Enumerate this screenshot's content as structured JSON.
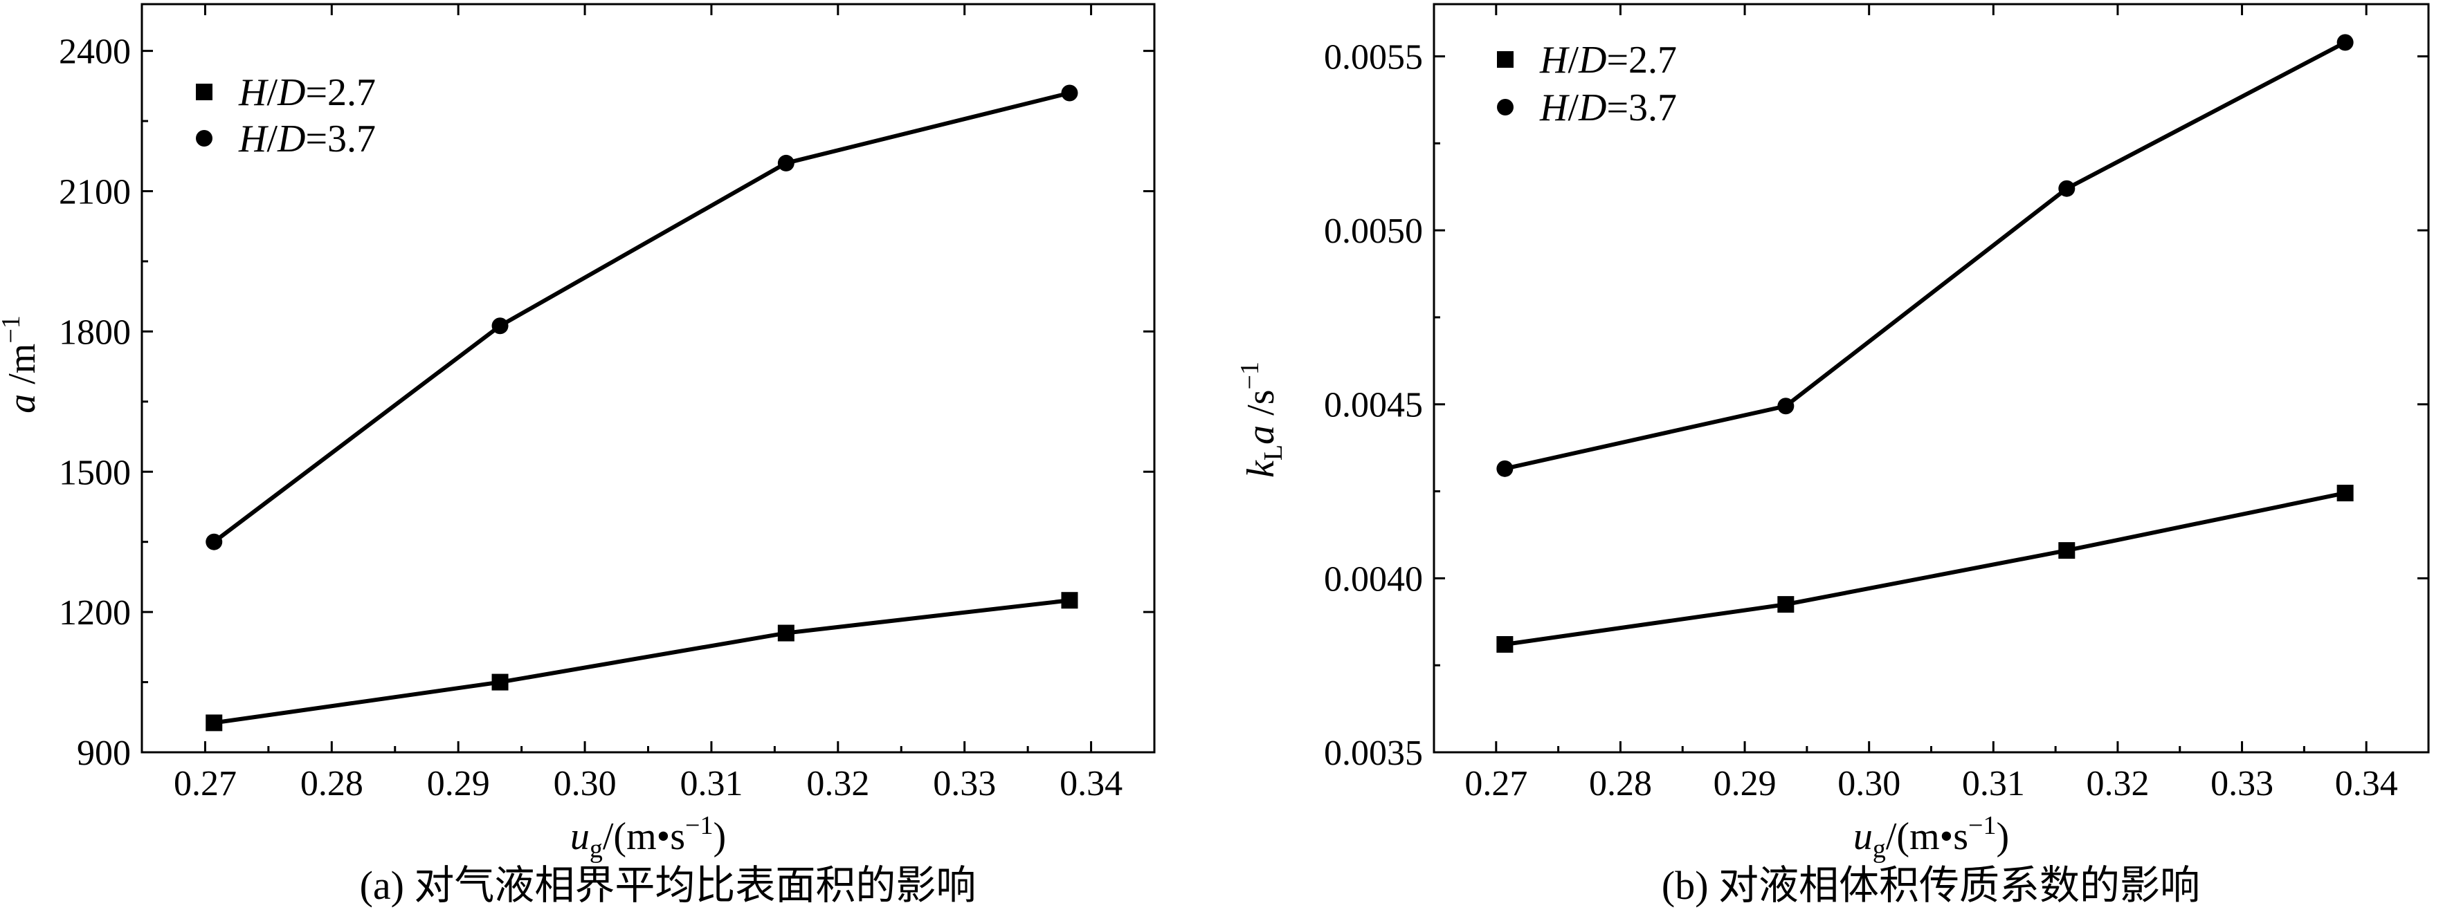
{
  "chart_data": [
    {
      "type": "line",
      "caption": "(a) 对气液相界平均比表面积的影响",
      "xlabel": {
        "var": "u",
        "sub": "g",
        "unit": "/(m•s",
        "exp": "−1",
        "close": ")"
      },
      "ylabel": {
        "var": "a",
        "unit": " /m",
        "exp": "−1"
      },
      "xlim": [
        0.265,
        0.345
      ],
      "ylim": [
        900,
        2500
      ],
      "xticks": [
        0.27,
        0.28,
        0.29,
        0.3,
        0.31,
        0.32,
        0.33,
        0.34
      ],
      "xtick_labels": [
        "0.27",
        "0.28",
        "0.29",
        "0.30",
        "0.31",
        "0.32",
        "0.33",
        "0.34"
      ],
      "yticks": [
        900,
        1200,
        1500,
        1800,
        2100,
        2400
      ],
      "ytick_labels": [
        "900",
        "1200",
        "1500",
        "1800",
        "2100",
        "2400"
      ],
      "legend": {
        "position": "top-left"
      },
      "series": [
        {
          "name": "H/D=2.7",
          "label_var": "H",
          "label_sep": "/",
          "label_var2": "D",
          "label_rest": "=2.7",
          "marker": "square",
          "x": [
            0.2707,
            0.2933,
            0.3159,
            0.3383
          ],
          "y": [
            963,
            1050,
            1155,
            1225
          ]
        },
        {
          "name": "H/D=3.7",
          "label_var": "H",
          "label_sep": "/",
          "label_var2": "D",
          "label_rest": "=3.7",
          "marker": "circle",
          "x": [
            0.2707,
            0.2933,
            0.3159,
            0.3383
          ],
          "y": [
            1350,
            1812,
            2160,
            2310
          ]
        }
      ]
    },
    {
      "type": "line",
      "caption": "(b) 对液相体积传质系数的影响",
      "xlabel": {
        "var": "u",
        "sub": "g",
        "unit": "/(m•s",
        "exp": "−1",
        "close": ")"
      },
      "ylabel": {
        "var": "k",
        "sub": "L",
        "var2": "a",
        "unit": " /s",
        "exp": "−1"
      },
      "xlim": [
        0.265,
        0.345
      ],
      "ylim": [
        0.0035,
        0.00565
      ],
      "xticks": [
        0.27,
        0.28,
        0.29,
        0.3,
        0.31,
        0.32,
        0.33,
        0.34
      ],
      "xtick_labels": [
        "0.27",
        "0.28",
        "0.29",
        "0.30",
        "0.31",
        "0.32",
        "0.33",
        "0.34"
      ],
      "yticks": [
        0.0035,
        0.004,
        0.0045,
        0.005,
        0.0055
      ],
      "ytick_labels": [
        "0.0035",
        "0.0040",
        "0.0045",
        "0.0050",
        "0.0055"
      ],
      "legend": {
        "position": "top-left"
      },
      "series": [
        {
          "name": "H/D=2.7",
          "label_var": "H",
          "label_sep": "/",
          "label_var2": "D",
          "label_rest": "=2.7",
          "marker": "square",
          "x": [
            0.2707,
            0.2933,
            0.3159,
            0.3383
          ],
          "y": [
            0.00381,
            0.003925,
            0.00408,
            0.004245
          ]
        },
        {
          "name": "H/D=3.7",
          "label_var": "H",
          "label_sep": "/",
          "label_var2": "D",
          "label_rest": "=3.7",
          "marker": "circle",
          "x": [
            0.2707,
            0.2933,
            0.3159,
            0.3383
          ],
          "y": [
            0.004315,
            0.004495,
            0.00512,
            0.00554
          ]
        }
      ]
    }
  ]
}
